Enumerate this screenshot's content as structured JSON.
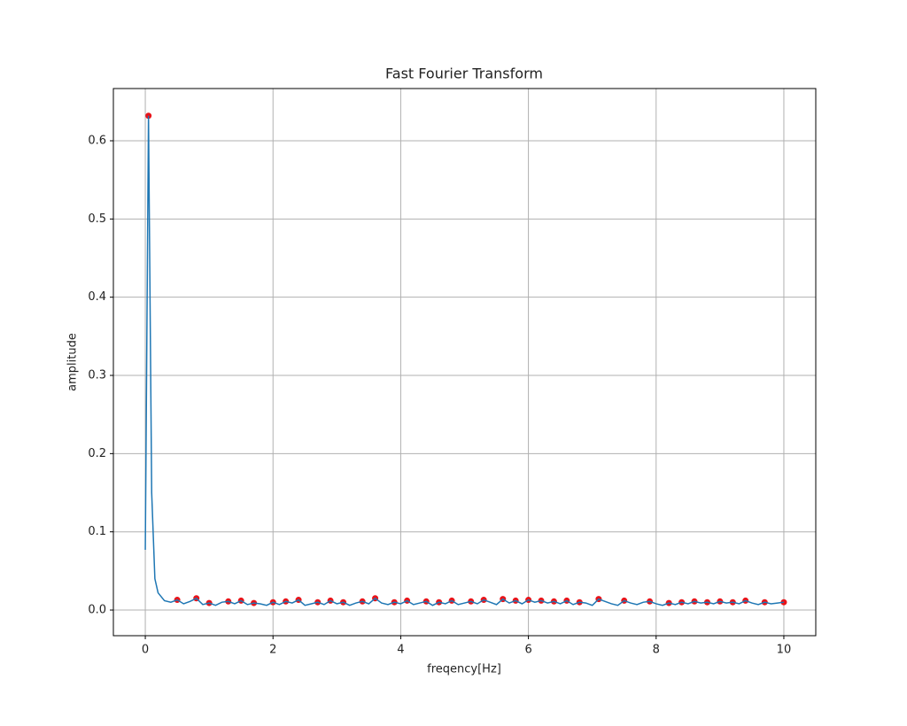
{
  "chart_data": {
    "type": "line",
    "title": "Fast Fourier Transform",
    "x_label": "freqency[Hz]",
    "y_label": "amplitude",
    "x": [
      0,
      0.05,
      0.1,
      0.15,
      0.2,
      0.3,
      0.4,
      0.5,
      0.6,
      0.7,
      0.8,
      0.9,
      1.0,
      1.1,
      1.2,
      1.3,
      1.4,
      1.5,
      1.6,
      1.7,
      1.8,
      1.9,
      2.0,
      2.1,
      2.2,
      2.3,
      2.4,
      2.5,
      2.6,
      2.7,
      2.8,
      2.9,
      3.0,
      3.1,
      3.2,
      3.3,
      3.4,
      3.5,
      3.6,
      3.7,
      3.8,
      3.9,
      4.0,
      4.1,
      4.2,
      4.3,
      4.4,
      4.5,
      4.6,
      4.7,
      4.8,
      4.9,
      5.0,
      5.1,
      5.2,
      5.3,
      5.4,
      5.5,
      5.6,
      5.7,
      5.8,
      5.9,
      6.0,
      6.1,
      6.2,
      6.3,
      6.4,
      6.5,
      6.6,
      6.7,
      6.8,
      6.9,
      7.0,
      7.1,
      7.2,
      7.3,
      7.4,
      7.5,
      7.6,
      7.7,
      7.8,
      7.9,
      8.0,
      8.1,
      8.2,
      8.3,
      8.4,
      8.5,
      8.6,
      8.7,
      8.8,
      8.9,
      9.0,
      9.1,
      9.2,
      9.3,
      9.4,
      9.5,
      9.6,
      9.7,
      9.8,
      9.9,
      10.0
    ],
    "series": [
      {
        "color": "#1f77b4",
        "peak_color": "#e8141a",
        "values": [
          0.077,
          0.632,
          0.15,
          0.04,
          0.022,
          0.012,
          0.01,
          0.013,
          0.008,
          0.011,
          0.015,
          0.007,
          0.009,
          0.006,
          0.01,
          0.011,
          0.008,
          0.012,
          0.007,
          0.009,
          0.008,
          0.006,
          0.01,
          0.007,
          0.011,
          0.009,
          0.013,
          0.006,
          0.008,
          0.01,
          0.007,
          0.012,
          0.008,
          0.01,
          0.006,
          0.009,
          0.011,
          0.008,
          0.015,
          0.009,
          0.007,
          0.01,
          0.008,
          0.012,
          0.007,
          0.009,
          0.011,
          0.006,
          0.01,
          0.008,
          0.012,
          0.007,
          0.009,
          0.011,
          0.008,
          0.013,
          0.01,
          0.007,
          0.014,
          0.009,
          0.012,
          0.008,
          0.013,
          0.01,
          0.012,
          0.009,
          0.011,
          0.008,
          0.012,
          0.007,
          0.01,
          0.009,
          0.006,
          0.014,
          0.011,
          0.008,
          0.006,
          0.012,
          0.009,
          0.007,
          0.01,
          0.011,
          0.008,
          0.006,
          0.009,
          0.007,
          0.01,
          0.008,
          0.011,
          0.009,
          0.01,
          0.008,
          0.011,
          0.009,
          0.01,
          0.008,
          0.012,
          0.009,
          0.007,
          0.01,
          0.008,
          0.009,
          0.01
        ]
      }
    ],
    "xlim": [
      -0.5,
      10.5
    ],
    "xticks": [
      0,
      2,
      4,
      6,
      8,
      10
    ],
    "ylim": [
      -0.0328,
      0.6668
    ],
    "yticks": [
      {
        "value": 0,
        "label": "0.0"
      },
      {
        "value": 0.1,
        "label": "0.1"
      },
      {
        "value": 0.2,
        "label": "0.2"
      },
      {
        "value": 0.3,
        "label": "0.3"
      },
      {
        "value": 0.4,
        "label": "0.4"
      },
      {
        "value": 0.5,
        "label": "0.5"
      },
      {
        "value": 0.6,
        "label": "0.6"
      }
    ],
    "grid": true
  }
}
